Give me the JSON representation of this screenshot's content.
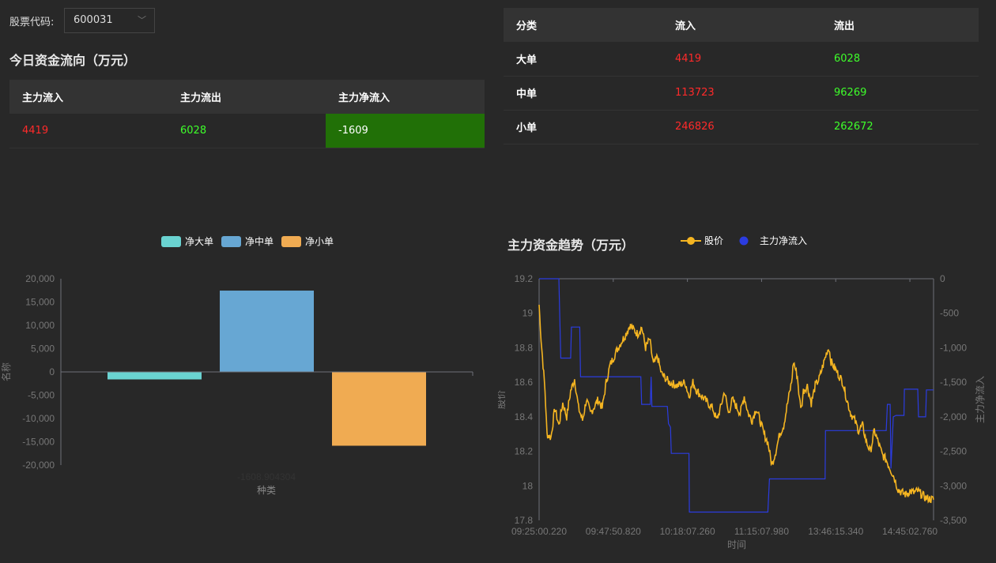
{
  "selector": {
    "label": "股票代码:",
    "value": "600031"
  },
  "today": {
    "title": "今日资金流向（万元）",
    "headers": [
      "主力流入",
      "主力流出",
      "主力净流入"
    ],
    "values": {
      "inflow": "4419",
      "outflow": "6028",
      "net": "-1609"
    }
  },
  "category_table": {
    "headers": [
      "分类",
      "流入",
      "流出"
    ],
    "rows": [
      {
        "name": "大单",
        "in": "4419",
        "out": "6028"
      },
      {
        "name": "中单",
        "in": "113723",
        "out": "96269"
      },
      {
        "name": "小单",
        "in": "246826",
        "out": "262672"
      }
    ]
  },
  "colors": {
    "red": "#ff2a2a",
    "green": "#3eff2a",
    "net_bg": "#217007",
    "price": "#f5b521",
    "flow": "#2b3ce0",
    "bar1": "#6ad3d1",
    "bar2": "#67a7d3",
    "bar3": "#f0ab52"
  },
  "chart_data": [
    {
      "type": "bar",
      "legend": [
        "净大单",
        "净中单",
        "净小单"
      ],
      "legend_placement": "top-center",
      "series": [
        {
          "name": "净大单",
          "value": -1609
        },
        {
          "name": "净中单",
          "value": 17454
        },
        {
          "name": "净小单",
          "value": -15846
        }
      ],
      "category_label": "-1608.904304",
      "xlabel": "种类",
      "ylabel": "名称",
      "ylim": [
        -20000,
        20000
      ],
      "yticks": [
        "20,000",
        "15,000",
        "10,000",
        "5,000",
        "0",
        "-5,000",
        "-10,000",
        "-15,000",
        "-20,000"
      ]
    },
    {
      "type": "line",
      "title": "主力资金趋势（万元）",
      "legend": [
        "股价",
        "主力净流入"
      ],
      "xlabel": "时间",
      "ylabel_left": "股价",
      "ylabel_right": "主力净流入",
      "xticks": [
        "09:25:00.220",
        "09:47:50.820",
        "10:18:07.260",
        "11:15:07.980",
        "13:46:15.340",
        "14:45:02.760"
      ],
      "xtick_positions": [
        0,
        18.8,
        37.6,
        56.4,
        75.2,
        94
      ],
      "x_range": [
        0,
        100
      ],
      "ylim_left": [
        17.8,
        19.2
      ],
      "yticks_left": [
        "19.2",
        "19",
        "18.8",
        "18.6",
        "18.4",
        "18.2",
        "18",
        "17.8"
      ],
      "ylim_right": [
        -3500,
        0
      ],
      "yticks_right": [
        "0",
        "-500",
        "-1,000",
        "-1,500",
        "-2,000",
        "-2,500",
        "-3,000",
        "-3,500"
      ],
      "price": [
        [
          0,
          19.05
        ],
        [
          0.5,
          18.85
        ],
        [
          1.5,
          18.55
        ],
        [
          2,
          18.3
        ],
        [
          3,
          18.28
        ],
        [
          4,
          18.45
        ],
        [
          5,
          18.35
        ],
        [
          6,
          18.48
        ],
        [
          7,
          18.4
        ],
        [
          8,
          18.55
        ],
        [
          9,
          18.62
        ],
        [
          10,
          18.45
        ],
        [
          11,
          18.38
        ],
        [
          12,
          18.5
        ],
        [
          13,
          18.42
        ],
        [
          15,
          18.5
        ],
        [
          16,
          18.45
        ],
        [
          17,
          18.6
        ],
        [
          18,
          18.7
        ],
        [
          20,
          18.8
        ],
        [
          22,
          18.88
        ],
        [
          23,
          18.93
        ],
        [
          25,
          18.88
        ],
        [
          26,
          18.92
        ],
        [
          27,
          18.8
        ],
        [
          28,
          18.85
        ],
        [
          29,
          18.7
        ],
        [
          30,
          18.75
        ],
        [
          31,
          18.65
        ],
        [
          33,
          18.6
        ],
        [
          35,
          18.58
        ],
        [
          37,
          18.6
        ],
        [
          38,
          18.52
        ],
        [
          39,
          18.6
        ],
        [
          40,
          18.55
        ],
        [
          42,
          18.5
        ],
        [
          44,
          18.45
        ],
        [
          45,
          18.38
        ],
        [
          46,
          18.45
        ],
        [
          47,
          18.55
        ],
        [
          48,
          18.42
        ],
        [
          49,
          18.5
        ],
        [
          51,
          18.42
        ],
        [
          52,
          18.52
        ],
        [
          53,
          18.42
        ],
        [
          54,
          18.38
        ],
        [
          55,
          18.45
        ],
        [
          56,
          18.38
        ],
        [
          57,
          18.3
        ],
        [
          58,
          18.25
        ],
        [
          59,
          18.12
        ],
        [
          60,
          18.2
        ],
        [
          61,
          18.3
        ],
        [
          62,
          18.35
        ],
        [
          63,
          18.48
        ],
        [
          64,
          18.6
        ],
        [
          64.5,
          18.72
        ],
        [
          65.5,
          18.63
        ],
        [
          66,
          18.5
        ],
        [
          66.5,
          18.45
        ],
        [
          67,
          18.55
        ],
        [
          68,
          18.58
        ],
        [
          69,
          18.48
        ],
        [
          70,
          18.58
        ],
        [
          71,
          18.62
        ],
        [
          72,
          18.7
        ],
        [
          73,
          18.78
        ],
        [
          73.5,
          18.8
        ],
        [
          74,
          18.72
        ],
        [
          75,
          18.68
        ],
        [
          76,
          18.64
        ],
        [
          77,
          18.6
        ],
        [
          78,
          18.5
        ],
        [
          79,
          18.42
        ],
        [
          80,
          18.38
        ],
        [
          81,
          18.32
        ],
        [
          82,
          18.35
        ],
        [
          83,
          18.25
        ],
        [
          84,
          18.2
        ],
        [
          85,
          18.32
        ],
        [
          86,
          18.25
        ],
        [
          87,
          18.18
        ],
        [
          88,
          18.15
        ],
        [
          89,
          18.1
        ],
        [
          90,
          18.05
        ],
        [
          91,
          17.98
        ],
        [
          92,
          17.96
        ],
        [
          93,
          17.95
        ],
        [
          94,
          17.97
        ],
        [
          95,
          17.96
        ],
        [
          96,
          17.97
        ],
        [
          97,
          17.95
        ],
        [
          98,
          17.93
        ],
        [
          100,
          17.92
        ]
      ],
      "flow": [
        [
          0,
          0
        ],
        [
          5,
          0
        ],
        [
          5.5,
          -1150
        ],
        [
          8,
          -1150
        ],
        [
          8.2,
          -700
        ],
        [
          10.3,
          -700
        ],
        [
          10.5,
          -1420
        ],
        [
          25.8,
          -1420
        ],
        [
          26,
          -1820
        ],
        [
          28.2,
          -1820
        ],
        [
          28.4,
          -1420
        ],
        [
          28.6,
          -1850
        ],
        [
          32.5,
          -1850
        ],
        [
          32.8,
          -2100
        ],
        [
          33.3,
          -2150
        ],
        [
          33.5,
          -2530
        ],
        [
          38,
          -2530
        ],
        [
          38.1,
          -3380
        ],
        [
          58,
          -3380
        ],
        [
          58.4,
          -2900
        ],
        [
          72.5,
          -2900
        ],
        [
          72.6,
          -2200
        ],
        [
          88,
          -2200
        ],
        [
          88.3,
          -1820
        ],
        [
          89,
          -1820
        ],
        [
          89.2,
          -2750
        ],
        [
          89.8,
          -2000
        ],
        [
          90.5,
          -1980
        ],
        [
          92.5,
          -1980
        ],
        [
          92.6,
          -1600
        ],
        [
          96,
          -1600
        ],
        [
          96.2,
          -2000
        ],
        [
          98,
          -2000
        ],
        [
          98.2,
          -1610
        ],
        [
          100,
          -1610
        ]
      ]
    }
  ]
}
